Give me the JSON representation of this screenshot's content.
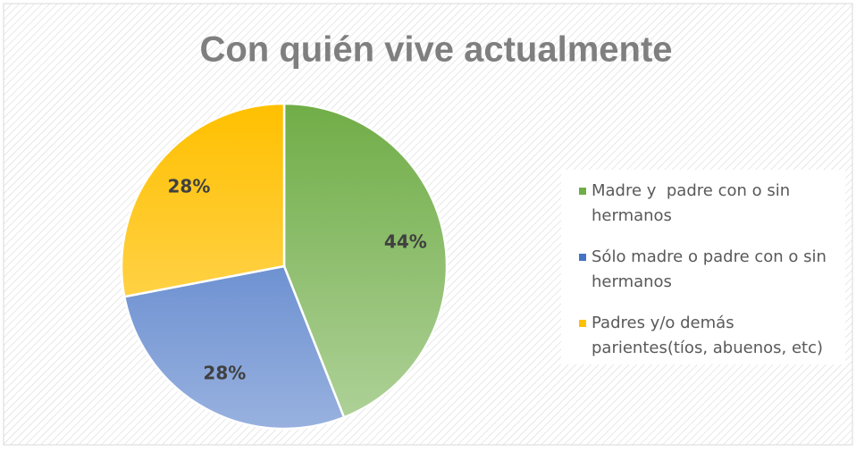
{
  "chart_data": {
    "type": "pie",
    "title": "Con quién vive actualmente",
    "categories": [
      "Madre y  padre con o sin hermanos",
      "Sólo madre o padre con o sin hermanos",
      "Padres y/o demás parientes(tíos, abuenos, etc)"
    ],
    "values": [
      44,
      28,
      28
    ],
    "value_labels": [
      "44%",
      "28%",
      "28%"
    ],
    "colors": [
      "#70ad47",
      "#4472c4",
      "#ffc000"
    ],
    "legend": "right"
  }
}
